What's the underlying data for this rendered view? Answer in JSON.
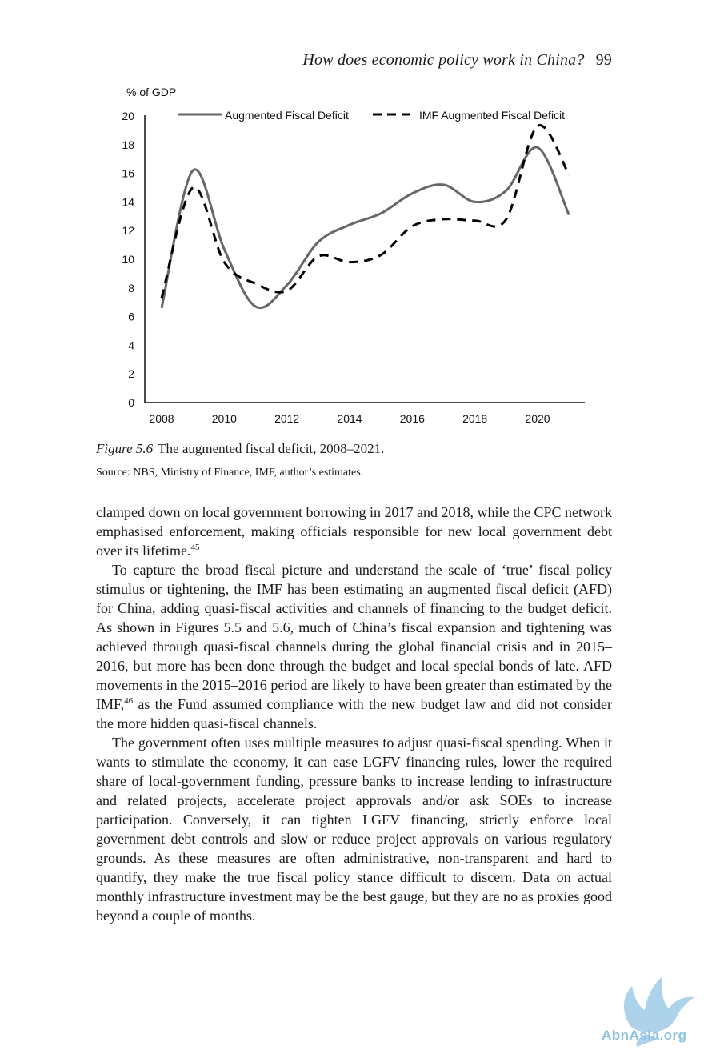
{
  "running_head": {
    "title": "How does economic policy work in China?",
    "page_number": "99"
  },
  "chart_data": {
    "type": "line",
    "ylabel": "% of GDP",
    "ylim": [
      0,
      20
    ],
    "yticks": [
      "0",
      "2",
      "4",
      "6",
      "8",
      "10",
      "12",
      "14",
      "16",
      "18",
      "20"
    ],
    "xticks": [
      "2008",
      "2010",
      "2012",
      "2014",
      "2016",
      "2018",
      "2020"
    ],
    "legend_position": "top",
    "series": [
      {
        "name": "Augmented Fiscal Deficit",
        "style": "solid",
        "color": "#666666",
        "x": [
          2008,
          2009,
          2010,
          2011,
          2012,
          2013,
          2014,
          2015,
          2016,
          2017,
          2018,
          2019,
          2020,
          2021
        ],
        "values": [
          6.6,
          16.2,
          10.7,
          6.7,
          8.2,
          11.2,
          12.4,
          13.2,
          14.6,
          15.2,
          14.0,
          14.8,
          17.8,
          13.1
        ]
      },
      {
        "name": "IMF Augmented Fiscal Deficit",
        "style": "dashed",
        "color": "#000000",
        "x": [
          2008,
          2009,
          2010,
          2011,
          2012,
          2013,
          2014,
          2015,
          2016,
          2017,
          2018,
          2019,
          2020,
          2021
        ],
        "values": [
          7.3,
          15.0,
          9.8,
          8.3,
          7.8,
          10.2,
          9.8,
          10.3,
          12.3,
          12.8,
          12.7,
          12.8,
          19.3,
          15.9
        ]
      }
    ]
  },
  "figure": {
    "label": "Figure 5.6",
    "caption": "The augmented fiscal deficit, 2008–2021.",
    "source": "Source: NBS, Ministry of Finance, IMF, author’s estimates."
  },
  "paragraphs": [
    {
      "text": "clamped down on local government borrowing in 2017 and 2018, while the CPC network emphasised enforcement, making officials responsible for new local government debt over its lifetime.",
      "footnote": "45"
    },
    {
      "text_before": "To capture the broad fiscal picture and understand the scale of ‘true’ fiscal policy stimulus or tightening, the IMF has been estimating an augmented fiscal deficit (AFD) for China, adding quasi-fiscal activities and channels of financing to the budget deficit. As shown in Figures 5.5 and 5.6, much of China’s fiscal expansion and tightening was achieved through quasi-fiscal channels during the global financial crisis and in 2015–2016, but more has been done through the budget and local special bonds of late. AFD movements in the 2015–2016 period are likely to have been greater than estimated by the IMF,",
      "footnote": "46",
      "text_after": " as the Fund assumed compliance with the new budget law and did not consider the more hidden quasi-fiscal channels."
    },
    {
      "text": "The government often uses multiple measures to adjust quasi-fiscal spending. When it wants to stimulate the economy, it can ease LGFV financing rules, lower the required share of local-government funding, pressure banks to increase lending to infrastructure and related projects, accelerate project approvals and/or ask SOEs to increase participation. Conversely, it can tighten LGFV financing, strictly enforce local government debt controls and slow or reduce project approvals on various regulatory grounds. As these measures are often administrative, non-transparent and hard to quantify, they make the true fiscal policy stance difficult to discern. Data on actual monthly infrastructure investment may be the best gauge, but they are no as proxies good beyond a couple of months."
    }
  ],
  "watermark": {
    "text": "AbnAsia.org",
    "color": "#8ec3e0",
    "icon": "phoenix-bird-logo"
  }
}
